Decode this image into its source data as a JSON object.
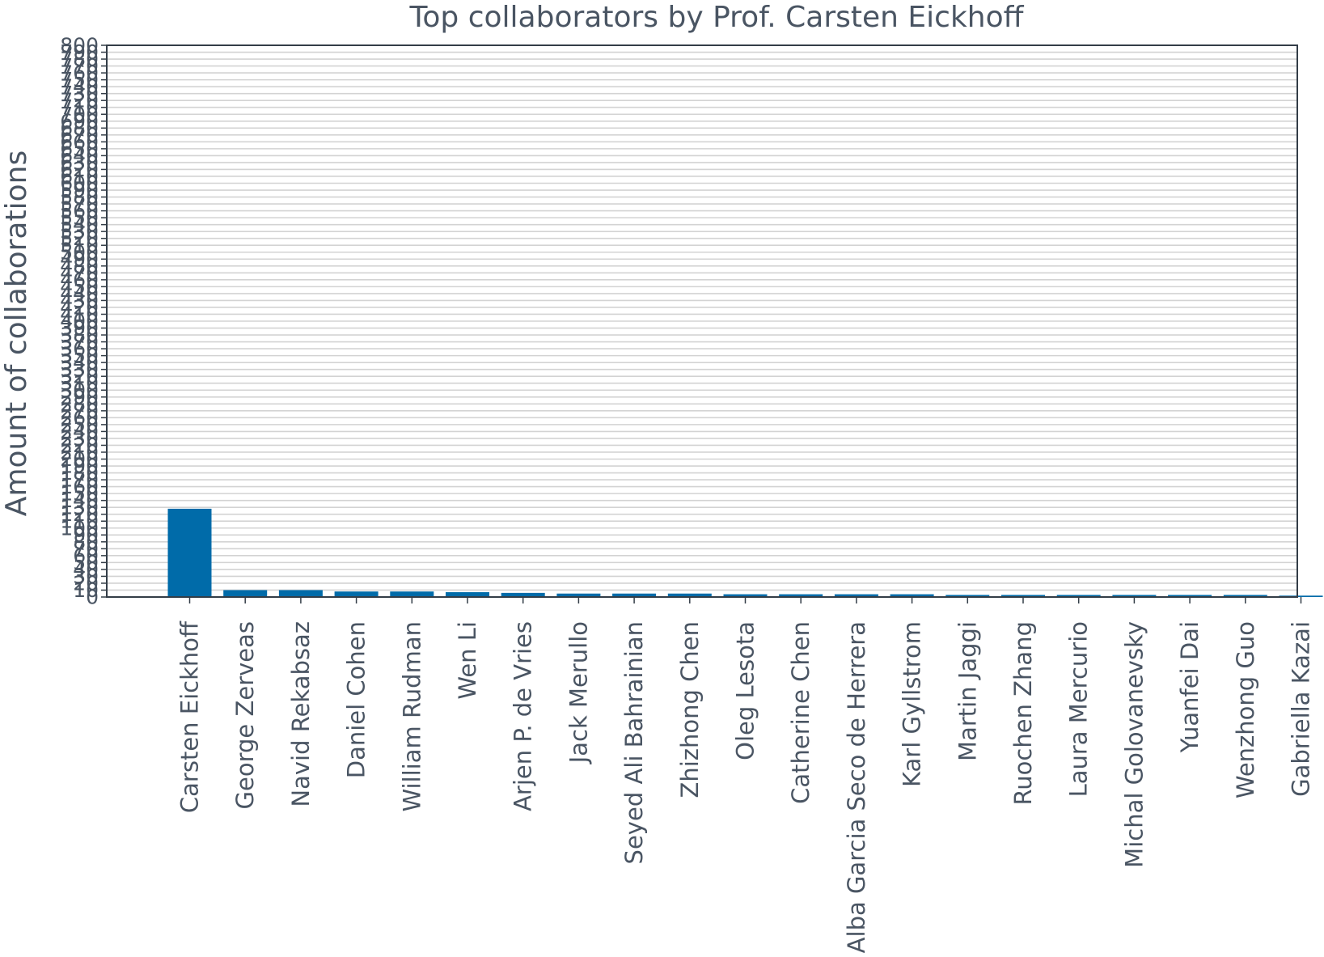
{
  "chart_data": {
    "type": "bar",
    "title": "Top collaborators by Prof. Carsten Eickhoff",
    "xlabel": "",
    "ylabel": "Amount of collaborations",
    "ylim": [
      0,
      800
    ],
    "ytick_step": 10,
    "grid": true,
    "bar_color": "#006ba9",
    "axis_color": "#333d47",
    "text_color": "#4a5563",
    "grid_color": "#d3d3d3",
    "categories": [
      "Carsten Eickhoff",
      "George Zerveas",
      "Navid Rekabsaz",
      "Daniel Cohen",
      "William Rudman",
      "Wen Li",
      "Arjen P. de Vries",
      "Jack Merullo",
      "Seyed Ali Bahrainian",
      "Zhizhong Chen",
      "Oleg Lesota",
      "Catherine Chen",
      "Alba Garcia Seco de Herrera",
      "Karl Gyllstrom",
      "Martin Jaggi",
      "Ruochen Zhang",
      "Laura Mercurio",
      "Michal Golovanevsky",
      "Yuanfei Dai",
      "Wenzhong Guo",
      "Gabriella Kazai"
    ],
    "values": [
      128,
      10,
      10,
      8,
      8,
      7,
      6,
      5,
      5,
      5,
      4,
      4,
      4,
      4,
      3,
      3,
      3,
      3,
      3,
      3,
      2
    ]
  }
}
